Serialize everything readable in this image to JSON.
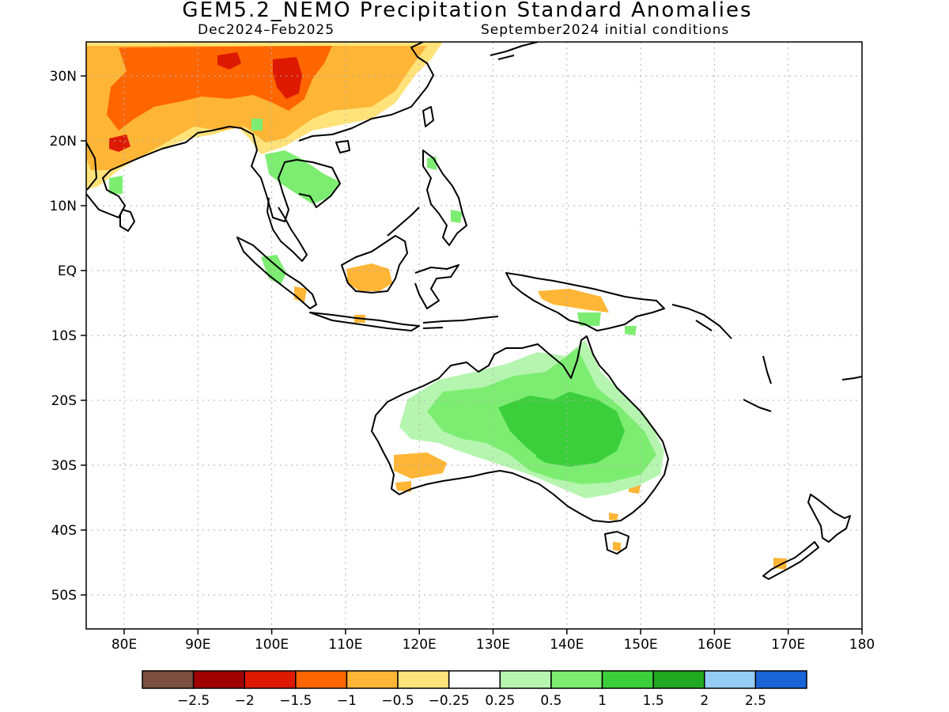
{
  "title": "GEM5.2_NEMO Precipitation Standard Anomalies",
  "subtitle_period": "Dec2024–Feb2025",
  "subtitle_init": "September2024 initial conditions",
  "lat_labels": [
    "30N",
    "20N",
    "10N",
    "EQ",
    "10S",
    "20S",
    "30S",
    "40S",
    "50S"
  ],
  "lon_labels": [
    "80E",
    "90E",
    "100E",
    "110E",
    "120E",
    "130E",
    "140E",
    "150E",
    "160E",
    "170E",
    "180"
  ],
  "colorbar": {
    "colors": [
      "#7a5040",
      "#a00000",
      "#dd1a00",
      "#ff6600",
      "#ffb535",
      "#ffe27a",
      "#ffffff",
      "#b6f5b0",
      "#7ded72",
      "#3ccf3c",
      "#20a820",
      "#94ccf5",
      "#1a66d8"
    ],
    "tick_labels": [
      "−2.5",
      "−2",
      "−1.5",
      "−1",
      "−0.5",
      "−0.25",
      "0.25",
      "0.5",
      "1",
      "1.5",
      "2",
      "2.5"
    ]
  },
  "anomaly_colors": {
    "dry_light": "#ffe27a",
    "dry_mid": "#ffb535",
    "dry_strong": "#ff6600",
    "dry_very": "#dd1a00",
    "wet_light": "#b6f5b0",
    "wet_mid": "#7ded72",
    "wet_strong": "#3ccf3c",
    "coast": "#000000"
  }
}
